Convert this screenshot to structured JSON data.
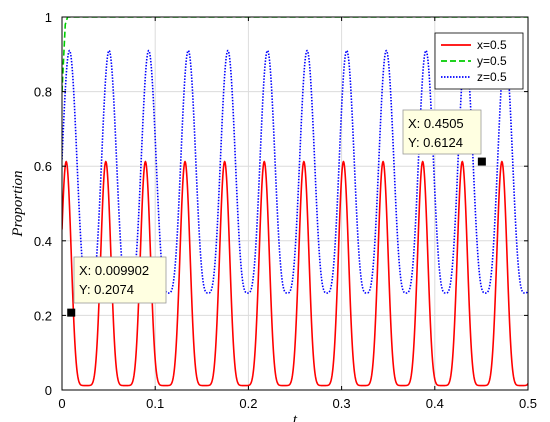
{
  "chart_data": {
    "type": "line",
    "title": "",
    "xlabel": "t",
    "ylabel": "Proportion",
    "xlim": [
      0,
      0.5
    ],
    "ylim": [
      0,
      1
    ],
    "grid": true,
    "legend_position": "top-right",
    "xticks": [
      "0",
      "0.1",
      "0.2",
      "0.3",
      "0.4",
      "0.5"
    ],
    "yticks": [
      "0",
      "0.2",
      "0.4",
      "0.6",
      "0.8",
      "1"
    ],
    "series": [
      {
        "name": "x=0.5",
        "color": "#ff0000",
        "style": "solid",
        "description": "periodic oscillation, period ~0.042, min ~0.01, peaks ~0.61",
        "period": 0.0425,
        "min": 0.012,
        "max": 0.612,
        "first_peak_t": 0.0045
      },
      {
        "name": "y=0.5",
        "color": "#00cc00",
        "style": "dashed",
        "description": "rises from 0.8 to 1 near t=0 then stays at 1",
        "start": 0.8,
        "plateau": 1.0
      },
      {
        "name": "z=0.5",
        "color": "#0000ff",
        "style": "dotted",
        "description": "periodic oscillation, period ~0.042, min ~0.26, peaks ~0.91",
        "period": 0.0425,
        "min": 0.26,
        "max": 0.91,
        "first_peak_t": 0.008
      }
    ],
    "annotations": [
      {
        "x_text": "X: 0.009902",
        "y_text": "Y: 0.2074",
        "x": 0.009902,
        "y": 0.2074
      },
      {
        "x_text": "X: 0.4505",
        "y_text": "Y: 0.6124",
        "x": 0.4505,
        "y": 0.6124
      }
    ]
  }
}
